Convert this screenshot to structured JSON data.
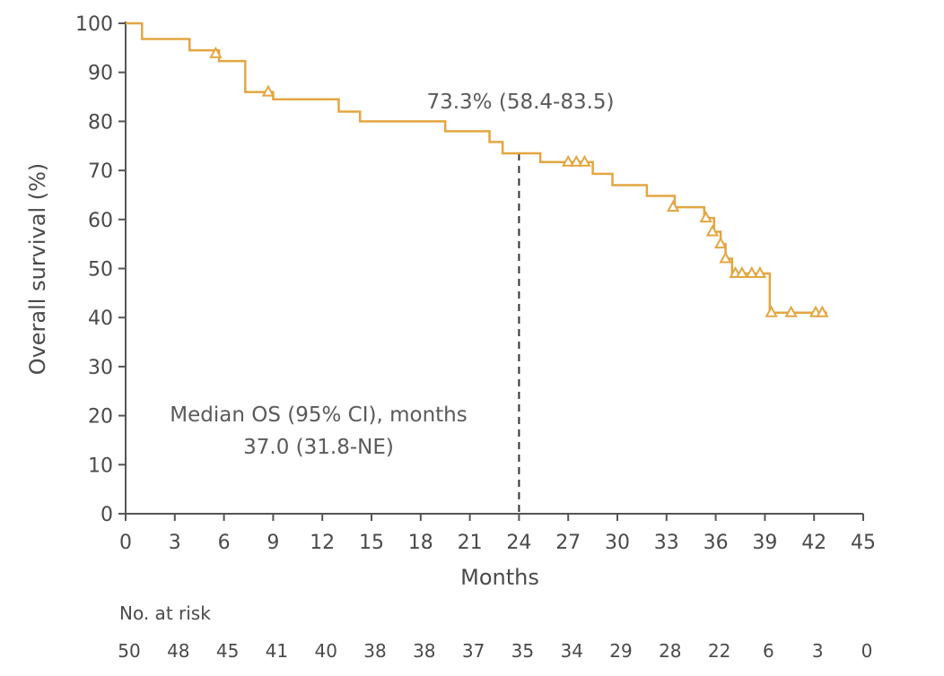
{
  "chart_data": {
    "type": "line",
    "subtype": "kaplan-meier",
    "title": "",
    "xlabel": "Months",
    "ylabel": "Overall survival (%)",
    "xlim": [
      0,
      45
    ],
    "ylim": [
      0,
      100
    ],
    "xticks": [
      0,
      3,
      6,
      9,
      12,
      15,
      18,
      21,
      24,
      27,
      30,
      33,
      36,
      39,
      42,
      45
    ],
    "yticks": [
      0,
      10,
      20,
      30,
      40,
      50,
      60,
      70,
      80,
      90,
      100
    ],
    "grid": false,
    "line_color": "#e3a640",
    "series": [
      {
        "name": "",
        "step_points": [
          {
            "x": 0,
            "y": 100
          },
          {
            "x": 1,
            "y": 96.8
          },
          {
            "x": 3.9,
            "y": 94.5
          },
          {
            "x": 5.7,
            "y": 92.3
          },
          {
            "x": 7.3,
            "y": 86
          },
          {
            "x": 9,
            "y": 84.5
          },
          {
            "x": 13,
            "y": 82
          },
          {
            "x": 14.3,
            "y": 80
          },
          {
            "x": 19.5,
            "y": 78
          },
          {
            "x": 22.2,
            "y": 75.8
          },
          {
            "x": 23,
            "y": 73.5
          },
          {
            "x": 25.3,
            "y": 71.7
          },
          {
            "x": 28.5,
            "y": 69.3
          },
          {
            "x": 29.7,
            "y": 67
          },
          {
            "x": 31.8,
            "y": 64.8
          },
          {
            "x": 33.5,
            "y": 62.5
          },
          {
            "x": 35.3,
            "y": 60.3
          },
          {
            "x": 35.9,
            "y": 57.5
          },
          {
            "x": 36.3,
            "y": 55
          },
          {
            "x": 36.6,
            "y": 52
          },
          {
            "x": 37,
            "y": 49
          },
          {
            "x": 39.3,
            "y": 41
          }
        ],
        "step_end_x": 42.8,
        "censored": [
          {
            "x": 5.5,
            "y": 93.8
          },
          {
            "x": 8.7,
            "y": 86
          },
          {
            "x": 27,
            "y": 71.7
          },
          {
            "x": 27.5,
            "y": 71.7
          },
          {
            "x": 28,
            "y": 71.7
          },
          {
            "x": 33.4,
            "y": 62.5
          },
          {
            "x": 35.4,
            "y": 60.3
          },
          {
            "x": 35.8,
            "y": 57.5
          },
          {
            "x": 36.3,
            "y": 55
          },
          {
            "x": 36.6,
            "y": 52
          },
          {
            "x": 37.2,
            "y": 49
          },
          {
            "x": 37.6,
            "y": 49
          },
          {
            "x": 38.2,
            "y": 49
          },
          {
            "x": 38.7,
            "y": 49
          },
          {
            "x": 39.4,
            "y": 41
          },
          {
            "x": 40.6,
            "y": 41
          },
          {
            "x": 42.1,
            "y": 41
          },
          {
            "x": 42.5,
            "y": 41
          }
        ]
      }
    ],
    "reference_line": {
      "x": 24,
      "y_top": 73.5,
      "style": "dashed"
    },
    "annotations": {
      "landmark": "73.3% (58.4-83.5)",
      "median_line1": "Median OS (95% CI), months",
      "median_line2": "37.0 (31.8-NE)"
    },
    "risk_table": {
      "title": "No. at risk",
      "times": [
        0,
        3,
        6,
        9,
        12,
        15,
        18,
        21,
        24,
        27,
        30,
        33,
        36,
        39,
        42,
        45
      ],
      "counts": [
        "50",
        "48",
        "45",
        "41",
        "40",
        "38",
        "38",
        "37",
        "35",
        "34",
        "29",
        "28",
        "22",
        "6",
        "3",
        "0"
      ]
    }
  }
}
